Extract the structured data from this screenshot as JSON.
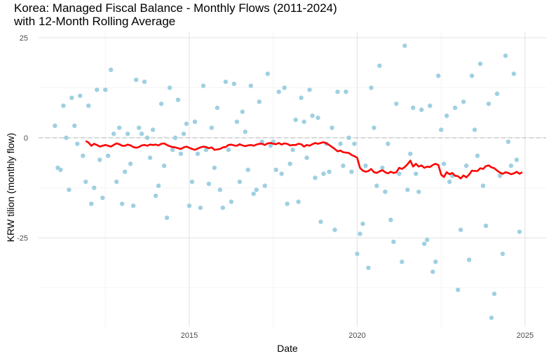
{
  "chart_data": {
    "type": "scatter",
    "title": "Korea: Managed Fiscal Balance - Monthly Flows (2011-2024)\nwith 12-Month Rolling Average",
    "xlabel": "Date",
    "ylabel": "KRW tilion (monthly flow)",
    "x_ticks": [
      "2015",
      "2020",
      "2025"
    ],
    "y_ticks": [
      "25",
      "0",
      "-25"
    ],
    "xlim": [
      "2011-01",
      "2025-01"
    ],
    "ylim": [
      -45,
      25
    ],
    "reference_line": 0,
    "grid": true,
    "colors": {
      "points": "#9ed0e2",
      "rolling_average": "#ff0000",
      "reference_line": "#b0b0b0"
    },
    "series": [
      {
        "name": "",
        "mark": "point",
        "x": [
          "2011-01",
          "2011-02",
          "2011-03",
          "2011-04",
          "2011-05",
          "2011-06",
          "2011-07",
          "2011-08",
          "2011-09",
          "2011-10",
          "2011-11",
          "2011-12",
          "2012-01",
          "2012-02",
          "2012-03",
          "2012-04",
          "2012-05",
          "2012-06",
          "2012-07",
          "2012-08",
          "2012-09",
          "2012-10",
          "2012-11",
          "2012-12",
          "2013-01",
          "2013-02",
          "2013-03",
          "2013-04",
          "2013-05",
          "2013-06",
          "2013-07",
          "2013-08",
          "2013-09",
          "2013-10",
          "2013-11",
          "2013-12",
          "2014-01",
          "2014-02",
          "2014-03",
          "2014-04",
          "2014-05",
          "2014-06",
          "2014-07",
          "2014-08",
          "2014-09",
          "2014-10",
          "2014-11",
          "2014-12",
          "2015-01",
          "2015-02",
          "2015-03",
          "2015-04",
          "2015-05",
          "2015-06",
          "2015-07",
          "2015-08",
          "2015-09",
          "2015-10",
          "2015-11",
          "2015-12",
          "2016-01",
          "2016-02",
          "2016-03",
          "2016-04",
          "2016-05",
          "2016-06",
          "2016-07",
          "2016-08",
          "2016-09",
          "2016-10",
          "2016-11",
          "2016-12",
          "2017-01",
          "2017-02",
          "2017-03",
          "2017-04",
          "2017-05",
          "2017-06",
          "2017-07",
          "2017-08",
          "2017-09",
          "2017-10",
          "2017-11",
          "2017-12",
          "2018-01",
          "2018-02",
          "2018-03",
          "2018-04",
          "2018-05",
          "2018-06",
          "2018-07",
          "2018-08",
          "2018-09",
          "2018-10",
          "2018-11",
          "2018-12",
          "2019-01",
          "2019-02",
          "2019-03",
          "2019-04",
          "2019-05",
          "2019-06",
          "2019-07",
          "2019-08",
          "2019-09",
          "2019-10",
          "2019-11",
          "2019-12",
          "2020-01",
          "2020-02",
          "2020-03",
          "2020-04",
          "2020-05",
          "2020-06",
          "2020-07",
          "2020-08",
          "2020-09",
          "2020-10",
          "2020-11",
          "2020-12",
          "2021-01",
          "2021-02",
          "2021-03",
          "2021-04",
          "2021-05",
          "2021-06",
          "2021-07",
          "2021-08",
          "2021-09",
          "2021-10",
          "2021-11",
          "2021-12",
          "2022-01",
          "2022-02",
          "2022-03",
          "2022-04",
          "2022-05",
          "2022-06",
          "2022-07",
          "2022-08",
          "2022-09",
          "2022-10",
          "2022-11",
          "2022-12",
          "2023-01",
          "2023-02",
          "2023-03",
          "2023-04",
          "2023-05",
          "2023-06",
          "2023-07",
          "2023-08",
          "2023-09",
          "2023-10",
          "2023-11",
          "2023-12",
          "2024-01",
          "2024-02",
          "2024-03",
          "2024-04",
          "2024-05",
          "2024-06",
          "2024-07",
          "2024-08",
          "2024-09",
          "2024-10",
          "2024-11",
          "2024-12"
        ],
        "y": [
          3,
          -7.5,
          -8,
          8,
          0,
          -13,
          10,
          3,
          -1.5,
          10.5,
          -4.5,
          -11,
          8,
          -16.5,
          -12.5,
          12,
          -5.5,
          -15,
          12,
          -4.5,
          17,
          1,
          -11,
          2.5,
          -16.5,
          -8.5,
          1,
          -6.5,
          -17,
          14.5,
          2.5,
          1,
          14,
          0,
          -5,
          2,
          -14.5,
          -12,
          8.5,
          -7,
          -20,
          12.5,
          -3,
          0,
          9.5,
          -4,
          1,
          3.5,
          -17,
          -11,
          4,
          -4,
          -17.5,
          13,
          -3,
          -11.5,
          2.5,
          -7.5,
          7.5,
          -13,
          -17.5,
          14,
          -3,
          -16,
          13.5,
          4,
          -11,
          6.5,
          1.5,
          -8,
          13,
          -14,
          -13,
          9,
          -1,
          -12,
          16,
          -2,
          -1,
          -8,
          11.5,
          -9,
          12.5,
          -16.5,
          -6.5,
          -3,
          4.5,
          -16,
          10,
          4,
          -5,
          12,
          5.5,
          -10,
          5,
          -21,
          -9,
          -1.5,
          -8.5,
          2.5,
          -23,
          11.5,
          -1.5,
          -7,
          11.5,
          0,
          -8.5,
          -1.5,
          -29,
          -24,
          -21.5,
          -7,
          -32.5,
          12.5,
          2.5,
          -12,
          18,
          -7.5,
          -13.5,
          -1.5,
          -20.5,
          -26,
          8.5,
          -9,
          -31,
          23,
          -13,
          -4,
          7.5,
          -9,
          -13.5,
          7,
          -26.5,
          -25.5,
          8,
          -33.5,
          -31,
          15.5,
          2,
          -6.5,
          5.5,
          -11,
          -9.5,
          7.5,
          -38,
          -23,
          9,
          -7,
          -30.5,
          15.5,
          2,
          -4.5,
          18.5,
          -12,
          -22,
          8.5,
          -45,
          -39,
          11,
          -9.5,
          -29,
          20.5,
          -1,
          -7,
          16,
          -5.5,
          -23.5,
          null
        ]
      },
      {
        "name": "",
        "mark": "line",
        "x": [
          "2011-12",
          "2012-01",
          "2012-02",
          "2012-03",
          "2012-04",
          "2012-05",
          "2012-06",
          "2012-07",
          "2012-08",
          "2012-09",
          "2012-10",
          "2012-11",
          "2012-12",
          "2013-01",
          "2013-02",
          "2013-03",
          "2013-04",
          "2013-05",
          "2013-06",
          "2013-07",
          "2013-08",
          "2013-09",
          "2013-10",
          "2013-11",
          "2013-12",
          "2014-01",
          "2014-02",
          "2014-03",
          "2014-04",
          "2014-05",
          "2014-06",
          "2014-07",
          "2014-08",
          "2014-09",
          "2014-10",
          "2014-11",
          "2014-12",
          "2015-01",
          "2015-02",
          "2015-03",
          "2015-04",
          "2015-05",
          "2015-06",
          "2015-07",
          "2015-08",
          "2015-09",
          "2015-10",
          "2015-11",
          "2015-12",
          "2016-01",
          "2016-02",
          "2016-03",
          "2016-04",
          "2016-05",
          "2016-06",
          "2016-07",
          "2016-08",
          "2016-09",
          "2016-10",
          "2016-11",
          "2016-12",
          "2017-01",
          "2017-02",
          "2017-03",
          "2017-04",
          "2017-05",
          "2017-06",
          "2017-07",
          "2017-08",
          "2017-09",
          "2017-10",
          "2017-11",
          "2017-12",
          "2018-01",
          "2018-02",
          "2018-03",
          "2018-04",
          "2018-05",
          "2018-06",
          "2018-07",
          "2018-08",
          "2018-09",
          "2018-10",
          "2018-11",
          "2018-12",
          "2019-01",
          "2019-02",
          "2019-03",
          "2019-04",
          "2019-05",
          "2019-06",
          "2019-07",
          "2019-08",
          "2019-09",
          "2019-10",
          "2019-11",
          "2019-12",
          "2020-01",
          "2020-02",
          "2020-03",
          "2020-04",
          "2020-05",
          "2020-06",
          "2020-07",
          "2020-08",
          "2020-09",
          "2020-10",
          "2020-11",
          "2020-12",
          "2021-01",
          "2021-02",
          "2021-03",
          "2021-04",
          "2021-05",
          "2021-06",
          "2021-07",
          "2021-08",
          "2021-09",
          "2021-10",
          "2021-11",
          "2021-12",
          "2022-01",
          "2022-02",
          "2022-03",
          "2022-04",
          "2022-05",
          "2022-06",
          "2022-07",
          "2022-08",
          "2022-09",
          "2022-10",
          "2022-11",
          "2022-12",
          "2023-01",
          "2023-02",
          "2023-03",
          "2023-04",
          "2023-05",
          "2023-06",
          "2023-07",
          "2023-08",
          "2023-09",
          "2023-10",
          "2023-11",
          "2023-12",
          "2024-01",
          "2024-02",
          "2024-03",
          "2024-04",
          "2024-05",
          "2024-06",
          "2024-07",
          "2024-08",
          "2024-09",
          "2024-10",
          "2024-11",
          "2024-12"
        ],
        "y": [
          -0.8,
          -1.2,
          -2,
          -1.5,
          -1.8,
          -2.2,
          -2,
          -1.8,
          -2,
          -2.2,
          -1.8,
          -1.4,
          -1.6,
          -2,
          -2,
          -1.7,
          -1.9,
          -2.3,
          -2.5,
          -2.3,
          -1.9,
          -1.8,
          -2,
          -1.7,
          -1.8,
          -1.7,
          -1.9,
          -1.5,
          -1.4,
          -1.8,
          -2.1,
          -2.3,
          -2.4,
          -2.6,
          -2.8,
          -2.4,
          -2.2,
          -2.5,
          -2.8,
          -3,
          -2.7,
          -2.4,
          -2.2,
          -2.3,
          -2.6,
          -2.4,
          -3,
          -2.9,
          -2.8,
          -2.4,
          -2.3,
          -1.8,
          -1.7,
          -1.9,
          -2,
          -1.6,
          -1.9,
          -2.1,
          -1.9,
          -1.8,
          -2,
          -1.7,
          -1.5,
          -1.5,
          -1.8,
          -1.4,
          -1.3,
          -1.5,
          -1.6,
          -1.3,
          -1.7,
          -1.4,
          -1.5,
          -1.9,
          -1.8,
          -1.8,
          -1.5,
          -1.6,
          -2.2,
          -1.8,
          -2,
          -1.6,
          -1.3,
          -1.5,
          -1.3,
          -1.1,
          -1.4,
          -1.8,
          -2.3,
          -2.8,
          -3.4,
          -3.2,
          -3.6,
          -3.7,
          -3.8,
          -4.3,
          -4.6,
          -5,
          -7.5,
          -8.2,
          -8.5,
          -8.3,
          -7.8,
          -8.6,
          -8.8,
          -8.4,
          -8.1,
          -8.6,
          -8.9,
          -8.5,
          -8.8,
          -8.6,
          -7.5,
          -7.8,
          -7.3,
          -6.6,
          -5.7,
          -7.2,
          -6.5,
          -7.2,
          -6.9,
          -7.5,
          -7.2,
          -7.3,
          -6.8,
          -6.5,
          -6.8,
          -9.2,
          -9.8,
          -8.6,
          -9.1,
          -8.8,
          -9.5,
          -9.6,
          -10.2,
          -9.4,
          -9.9,
          -9.2,
          -8.2,
          -8.3,
          -8.3,
          -7.6,
          -7.8,
          -7.1,
          -6.9,
          -7.4,
          -7.6,
          -8.2,
          -8.7,
          -9.0,
          -8.6,
          -8.8,
          -9.1,
          -8.9,
          -8.5,
          -9.0,
          -8.6
        ]
      }
    ]
  }
}
